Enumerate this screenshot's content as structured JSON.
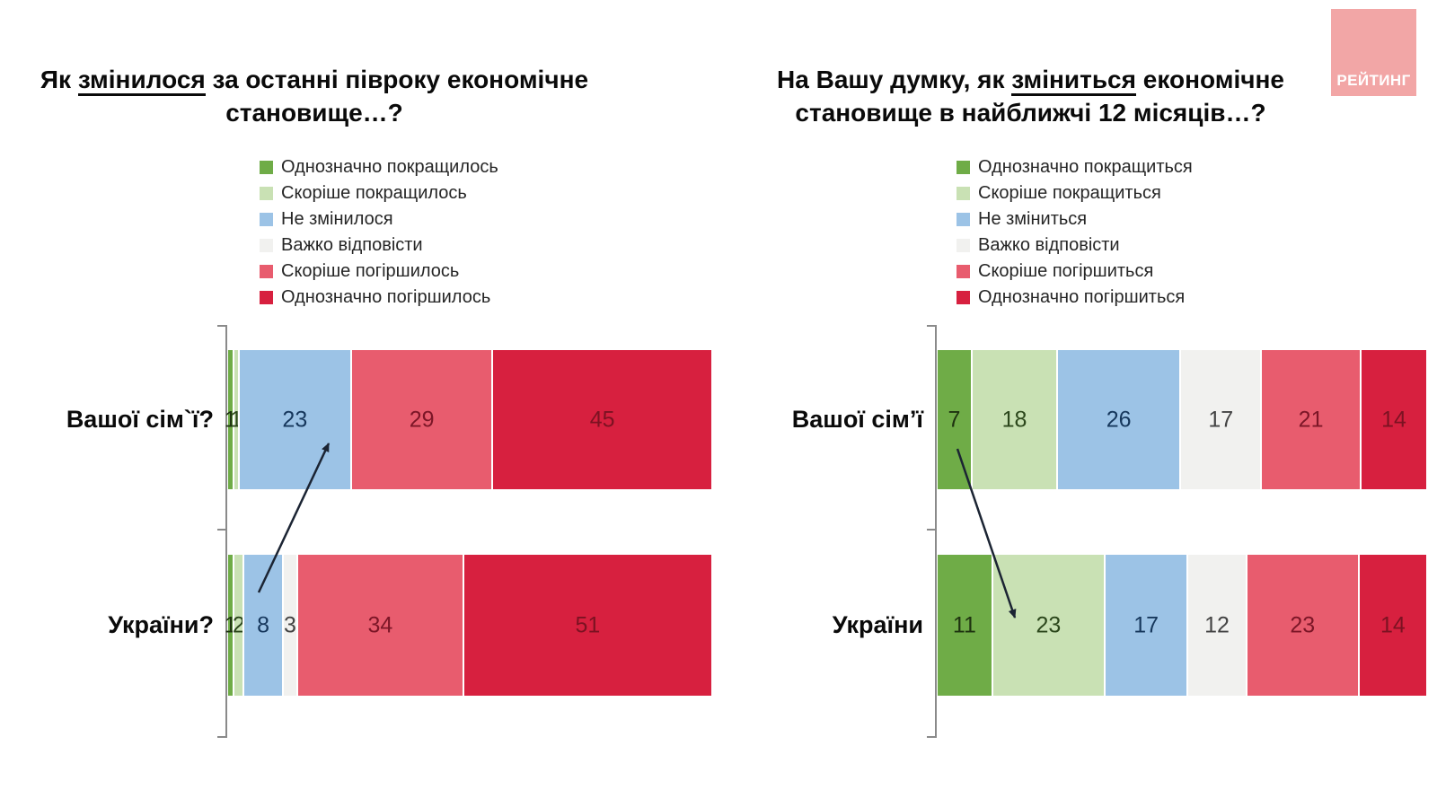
{
  "logo": {
    "text": "РЕЙТИНГ",
    "bg_color": "#F2A6A6",
    "text_color": "#ffffff"
  },
  "chart_data": [
    {
      "type": "bar",
      "orientation": "horizontal",
      "stacked": true,
      "grid": false,
      "legend_position": "top",
      "xlim": [
        0,
        100
      ],
      "title": {
        "pre": "Як ",
        "underlined": "змінилося",
        "post": " за останні півроку економічне становище…?"
      },
      "legend": [
        {
          "label": "Однозначно покращилось",
          "color": "#6FAC47",
          "label_color": "#1e3310"
        },
        {
          "label": "Скоріше покращилось",
          "color": "#C9E1B4",
          "label_color": "#2c471c"
        },
        {
          "label": "Не змінилося",
          "color": "#9CC3E6",
          "label_color": "#16375c"
        },
        {
          "label": "Важко відповісти",
          "color": "#F1F1EF",
          "label_color": "#444444"
        },
        {
          "label": "Скоріше погіршилось",
          "color": "#E85C6E",
          "label_color": "#7c1627"
        },
        {
          "label": "Однозначно погіршилось",
          "color": "#D7203F",
          "label_color": "#7c1222"
        }
      ],
      "categories": [
        "Вашої сім`ї?",
        "України?"
      ],
      "series": [
        {
          "name": "Однозначно покращилось",
          "values": [
            1,
            1
          ]
        },
        {
          "name": "Скоріше покращилось",
          "values": [
            1,
            2
          ]
        },
        {
          "name": "Не змінилося",
          "values": [
            23,
            8
          ]
        },
        {
          "name": "Важко відповісти",
          "values": [
            0,
            3
          ]
        },
        {
          "name": "Скоріше погіршилось",
          "values": [
            29,
            34
          ]
        },
        {
          "name": "Однозначно погіршилось",
          "values": [
            45,
            51
          ]
        }
      ]
    },
    {
      "type": "bar",
      "orientation": "horizontal",
      "stacked": true,
      "grid": false,
      "legend_position": "top",
      "xlim": [
        0,
        100
      ],
      "title": {
        "pre": "На Вашу думку, як ",
        "underlined": "зміниться",
        "post": " економічне становище в найближчі 12 місяців…?"
      },
      "legend": [
        {
          "label": "Однозначно покращиться",
          "color": "#6FAC47",
          "label_color": "#1e3310"
        },
        {
          "label": "Скоріше покращиться",
          "color": "#C9E1B4",
          "label_color": "#2c471c"
        },
        {
          "label": "Не зміниться",
          "color": "#9CC3E6",
          "label_color": "#16375c"
        },
        {
          "label": "Важко відповісти",
          "color": "#F1F1EF",
          "label_color": "#444444"
        },
        {
          "label": "Скоріше погіршиться",
          "color": "#E85C6E",
          "label_color": "#7c1627"
        },
        {
          "label": "Однозначно погіршиться",
          "color": "#D7203F",
          "label_color": "#7c1222"
        }
      ],
      "categories": [
        "Вашої сім’ї",
        "України"
      ],
      "series": [
        {
          "name": "Однозначно покращиться",
          "values": [
            7,
            11
          ]
        },
        {
          "name": "Скоріше покращиться",
          "values": [
            18,
            23
          ]
        },
        {
          "name": "Не зміниться",
          "values": [
            26,
            17
          ]
        },
        {
          "name": "Важко відповісти",
          "values": [
            17,
            12
          ]
        },
        {
          "name": "Скоріше погіршиться",
          "values": [
            21,
            23
          ]
        },
        {
          "name": "Однозначно погіршиться",
          "values": [
            14,
            14
          ]
        }
      ]
    }
  ]
}
